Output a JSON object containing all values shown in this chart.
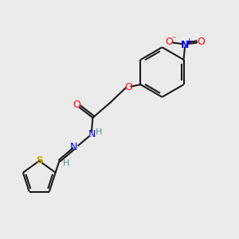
{
  "bg_color": "#ebebeb",
  "bond_color": "#1a1a1a",
  "oxygen_color": "#ff0000",
  "nitrogen_color": "#0000ff",
  "sulfur_color": "#ccaa00",
  "h_color": "#4a9a8a",
  "lw": 1.5,
  "figsize": [
    3.0,
    3.0
  ],
  "dpi": 100,
  "xlim": [
    0,
    10
  ],
  "ylim": [
    0,
    10
  ]
}
